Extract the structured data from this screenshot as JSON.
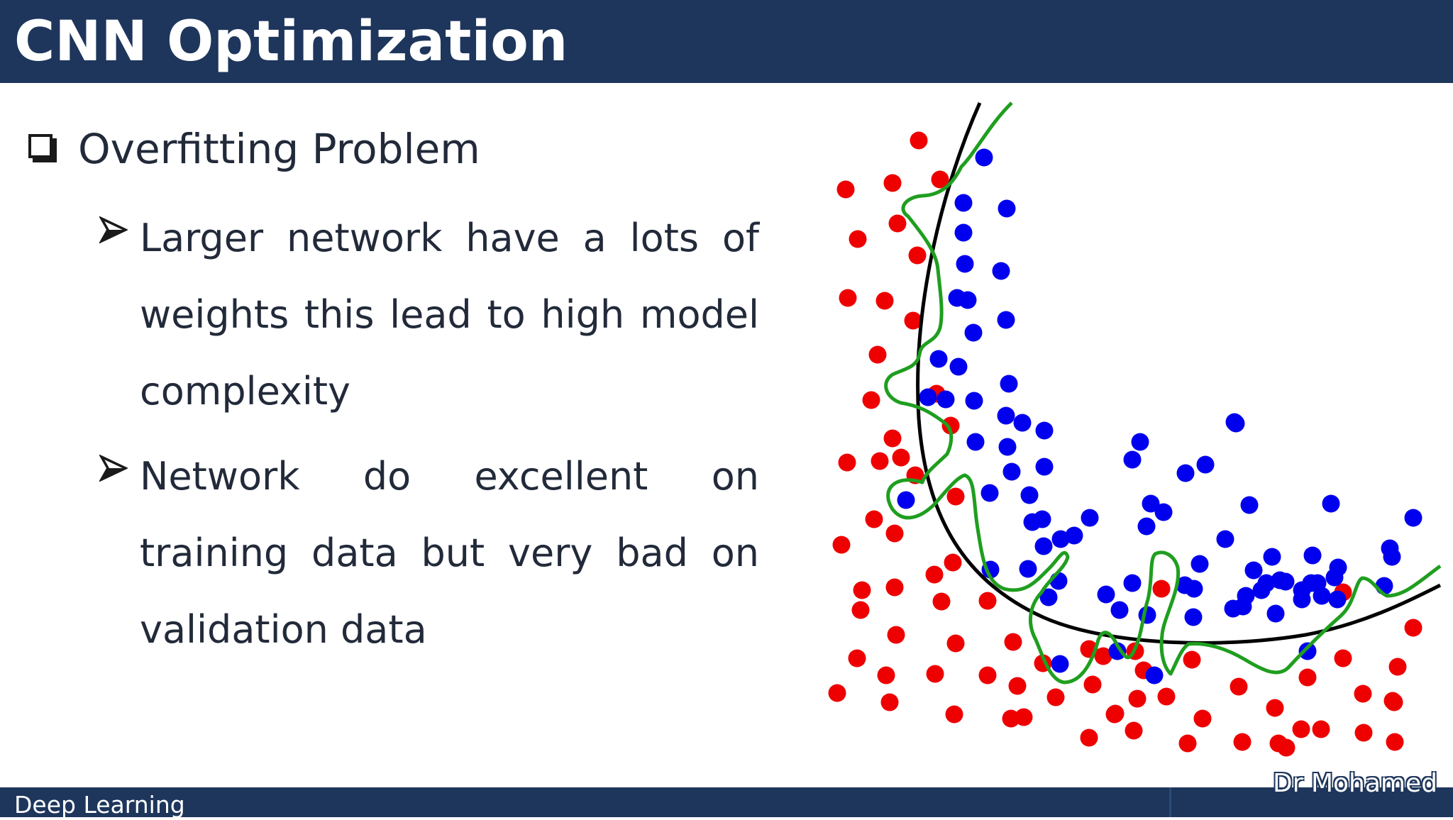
{
  "header": {
    "title": "CNN Optimization"
  },
  "main": {
    "heading": "Overfitting Problem",
    "bullets": [
      {
        "text": "Larger network have a lots of weights this lead to high model complexity"
      },
      {
        "text": "Network do excellent on training data but very bad on validation data"
      }
    ]
  },
  "footer": {
    "course": "Deep Learning",
    "author": "Dr Mohamed"
  },
  "colors": {
    "header_bg": "#1e365c",
    "class_a": "#ee0000",
    "class_b": "#0000ee",
    "overfit_boundary": "#1f9e1f",
    "smooth_boundary": "#000000"
  }
}
